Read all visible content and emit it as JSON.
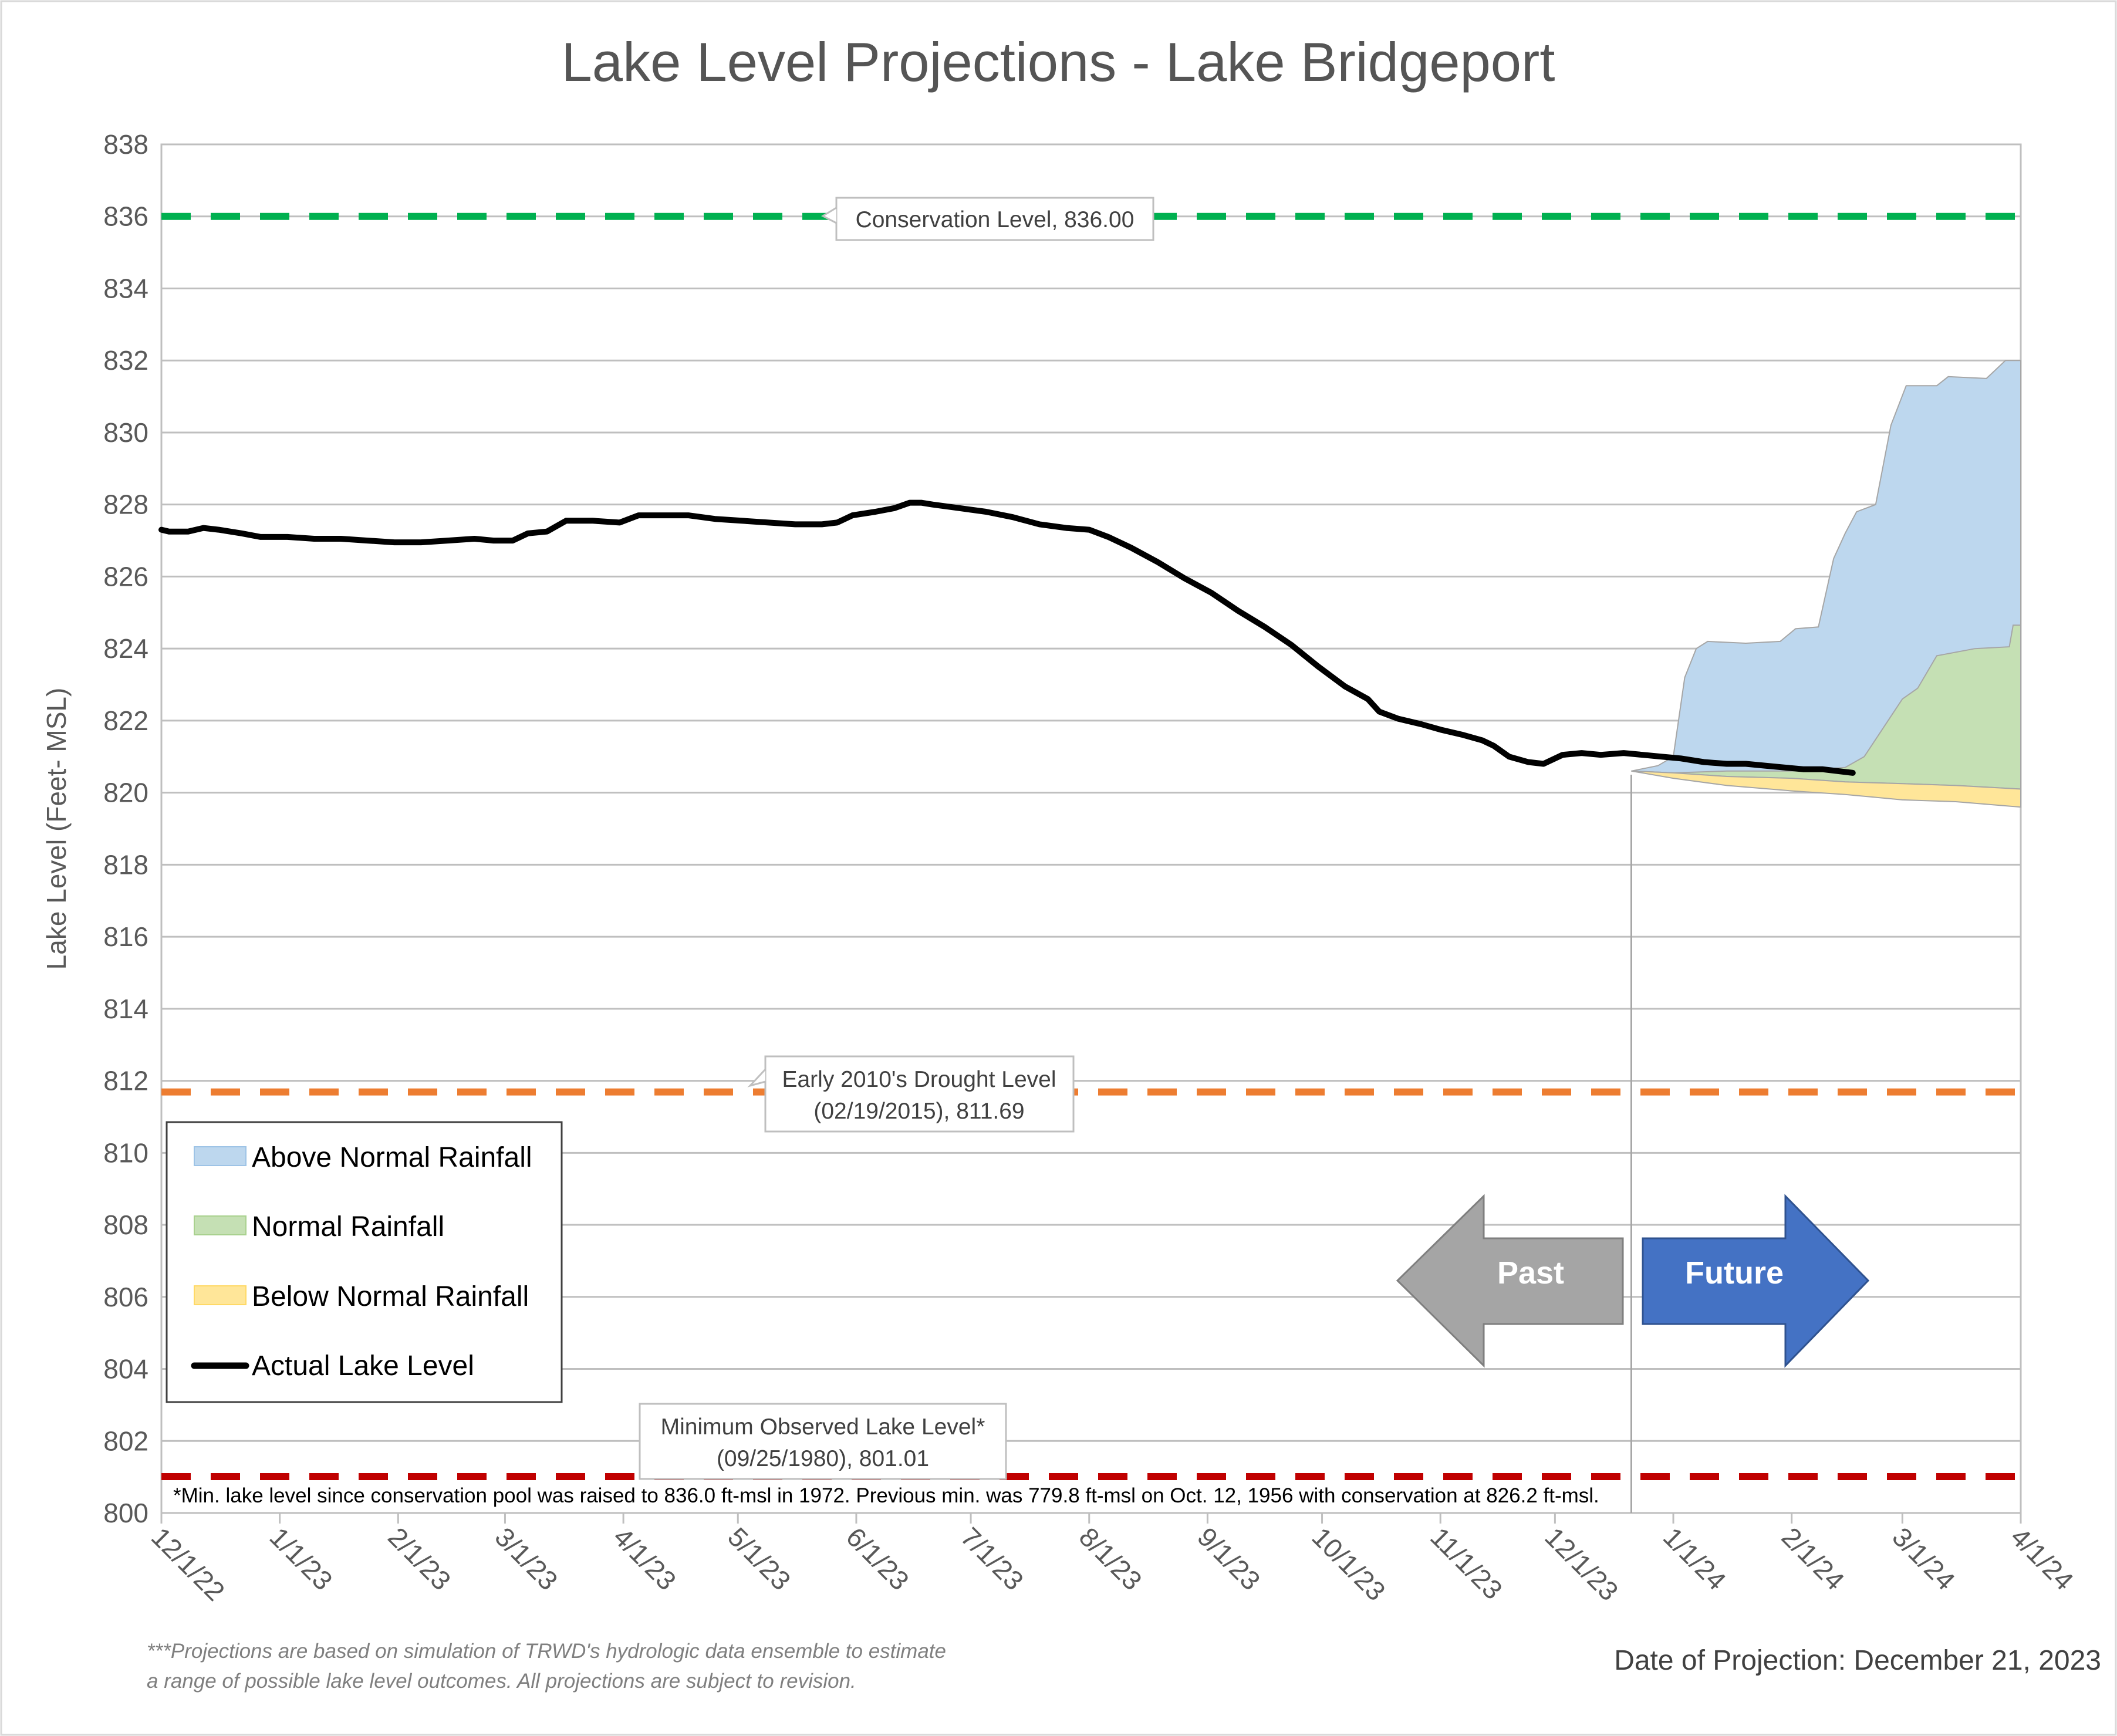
{
  "title": "Lake Level Projections - Lake Bridgeport",
  "ylabel": "Lake Level (Feet- MSL)",
  "colors": {
    "actual": "#000000",
    "above": "#bdd7ee",
    "normal": "#c5e0b4",
    "below": "#ffe699",
    "conservation": "#00b050",
    "drought": "#ed7d31",
    "minimum": "#c00000",
    "past_arrow": "#a5a5a5",
    "future_arrow": "#4472c4",
    "grid": "#bfbfbf"
  },
  "callouts": {
    "conservation": "Conservation Level, 836.00",
    "drought_line1": "Early 2010's Drought Level",
    "drought_line2": "(02/19/2015), 811.69",
    "minimum_line1": "Minimum Observed Lake Level*",
    "minimum_line2": "(09/25/1980), 801.01"
  },
  "legend": {
    "above": "Above Normal Rainfall",
    "normal": "Normal Rainfall",
    "below": "Below Normal Rainfall",
    "actual": "Actual Lake Level"
  },
  "arrows": {
    "past": "Past",
    "future": "Future"
  },
  "footnote": "*Min. lake level since conservation pool was raised to 836.0 ft-msl in 1972.  Previous min. was 779.8 ft-msl on Oct. 12, 1956 with conservation at 826.2 ft-msl.",
  "disclaimer_line1": "***Projections are based on simulation of TRWD's hydrologic data ensemble to estimate",
  "disclaimer_line2": "a range of possible lake level outcomes.  All projections are subject to revision.",
  "projection_date": "Date of Projection: December 21, 2023",
  "chart_data": {
    "type": "area",
    "x_axis": {
      "range": [
        "2022-12-01",
        "2024-04-01"
      ],
      "tick_labels": [
        "12/1/22",
        "1/1/23",
        "2/1/23",
        "3/1/23",
        "4/1/23",
        "5/1/23",
        "6/1/23",
        "7/1/23",
        "8/1/23",
        "9/1/23",
        "10/1/23",
        "11/1/23",
        "12/1/23",
        "1/1/24",
        "2/1/24",
        "3/1/24",
        "4/1/24"
      ],
      "tick_dates": [
        "2022-12-01",
        "2023-01-01",
        "2023-02-01",
        "2023-03-01",
        "2023-04-01",
        "2023-05-01",
        "2023-06-01",
        "2023-07-01",
        "2023-08-01",
        "2023-09-01",
        "2023-10-01",
        "2023-11-01",
        "2023-12-01",
        "2024-01-01",
        "2024-02-01",
        "2024-03-01",
        "2024-04-01"
      ]
    },
    "y_axis": {
      "range": [
        800,
        838
      ],
      "ticks": [
        800,
        802,
        804,
        806,
        808,
        810,
        812,
        814,
        816,
        818,
        820,
        822,
        824,
        826,
        828,
        830,
        832,
        834,
        836,
        838
      ]
    },
    "grid": "horizontal",
    "legend_placement": "lower-left",
    "projection_start": "2023-12-21",
    "reference_lines": [
      {
        "name": "Conservation Level",
        "value": 836.0
      },
      {
        "name": "Early 2010's Drought Level",
        "value": 811.69
      },
      {
        "name": "Minimum Observed Lake Level",
        "value": 801.01
      }
    ],
    "series": [
      {
        "name": "Actual Lake Level",
        "points": [
          [
            "2022-12-01",
            827.3
          ],
          [
            "2022-12-03",
            827.25
          ],
          [
            "2022-12-08",
            827.25
          ],
          [
            "2022-12-12",
            827.35
          ],
          [
            "2022-12-16",
            827.3
          ],
          [
            "2022-12-22",
            827.2
          ],
          [
            "2022-12-27",
            827.1
          ],
          [
            "2023-01-03",
            827.1
          ],
          [
            "2023-01-10",
            827.05
          ],
          [
            "2023-01-17",
            827.05
          ],
          [
            "2023-01-24",
            827.0
          ],
          [
            "2023-01-31",
            826.95
          ],
          [
            "2023-02-07",
            826.95
          ],
          [
            "2023-02-14",
            827.0
          ],
          [
            "2023-02-21",
            827.05
          ],
          [
            "2023-02-26",
            827.0
          ],
          [
            "2023-03-03",
            827.0
          ],
          [
            "2023-03-07",
            827.2
          ],
          [
            "2023-03-12",
            827.25
          ],
          [
            "2023-03-17",
            827.55
          ],
          [
            "2023-03-24",
            827.55
          ],
          [
            "2023-03-31",
            827.5
          ],
          [
            "2023-04-05",
            827.7
          ],
          [
            "2023-04-12",
            827.7
          ],
          [
            "2023-04-18",
            827.7
          ],
          [
            "2023-04-25",
            827.6
          ],
          [
            "2023-05-02",
            827.55
          ],
          [
            "2023-05-09",
            827.5
          ],
          [
            "2023-05-16",
            827.45
          ],
          [
            "2023-05-23",
            827.45
          ],
          [
            "2023-05-27",
            827.5
          ],
          [
            "2023-05-31",
            827.7
          ],
          [
            "2023-06-06",
            827.8
          ],
          [
            "2023-06-11",
            827.9
          ],
          [
            "2023-06-15",
            828.05
          ],
          [
            "2023-06-18",
            828.05
          ],
          [
            "2023-06-21",
            828.0
          ],
          [
            "2023-06-28",
            827.9
          ],
          [
            "2023-07-05",
            827.8
          ],
          [
            "2023-07-12",
            827.65
          ],
          [
            "2023-07-19",
            827.45
          ],
          [
            "2023-07-26",
            827.35
          ],
          [
            "2023-08-01",
            827.3
          ],
          [
            "2023-08-06",
            827.1
          ],
          [
            "2023-08-12",
            826.8
          ],
          [
            "2023-08-19",
            826.4
          ],
          [
            "2023-08-26",
            825.95
          ],
          [
            "2023-09-02",
            825.55
          ],
          [
            "2023-09-09",
            825.05
          ],
          [
            "2023-09-16",
            824.6
          ],
          [
            "2023-09-23",
            824.1
          ],
          [
            "2023-09-30",
            823.5
          ],
          [
            "2023-10-07",
            822.95
          ],
          [
            "2023-10-13",
            822.6
          ],
          [
            "2023-10-16",
            822.25
          ],
          [
            "2023-10-21",
            822.05
          ],
          [
            "2023-10-27",
            821.9
          ],
          [
            "2023-11-01",
            821.75
          ],
          [
            "2023-11-07",
            821.6
          ],
          [
            "2023-11-12",
            821.45
          ],
          [
            "2023-11-15",
            821.3
          ],
          [
            "2023-11-19",
            821.0
          ],
          [
            "2023-11-24",
            820.85
          ],
          [
            "2023-11-28",
            820.8
          ],
          [
            "2023-12-03",
            821.05
          ],
          [
            "2023-12-08",
            821.1
          ],
          [
            "2023-12-13",
            821.05
          ],
          [
            "2023-12-19",
            821.1
          ],
          [
            "2023-12-24",
            821.05
          ],
          [
            "2023-12-29",
            821.0
          ],
          [
            "2024-01-03",
            820.95
          ],
          [
            "2024-01-09",
            820.85
          ],
          [
            "2024-01-15",
            820.8
          ],
          [
            "2024-01-20",
            820.8
          ],
          [
            "2024-01-25",
            820.75
          ],
          [
            "2024-01-30",
            820.7
          ],
          [
            "2024-02-04",
            820.65
          ],
          [
            "2024-02-09",
            820.65
          ],
          [
            "2024-02-13",
            820.6
          ],
          [
            "2024-02-17",
            820.55
          ]
        ]
      },
      {
        "name": "Above Normal Rainfall",
        "points": [
          [
            "2023-12-21",
            820.6
          ],
          [
            "2023-12-28",
            820.75
          ],
          [
            "2024-01-01",
            821.0
          ],
          [
            "2024-01-04",
            823.2
          ],
          [
            "2024-01-07",
            824.0
          ],
          [
            "2024-01-10",
            824.2
          ],
          [
            "2024-01-20",
            824.15
          ],
          [
            "2024-01-29",
            824.2
          ],
          [
            "2024-02-02",
            824.55
          ],
          [
            "2024-02-08",
            824.6
          ],
          [
            "2024-02-12",
            826.5
          ],
          [
            "2024-02-15",
            827.2
          ],
          [
            "2024-02-18",
            827.8
          ],
          [
            "2024-02-23",
            828.0
          ],
          [
            "2024-02-27",
            830.2
          ],
          [
            "2024-03-02",
            831.3
          ],
          [
            "2024-03-10",
            831.3
          ],
          [
            "2024-03-13",
            831.55
          ],
          [
            "2024-03-23",
            831.5
          ],
          [
            "2024-03-28",
            832.0
          ],
          [
            "2024-04-01",
            832.0
          ]
        ]
      },
      {
        "name": "Normal Rainfall",
        "points": [
          [
            "2023-12-21",
            820.6
          ],
          [
            "2024-01-01",
            820.55
          ],
          [
            "2024-01-15",
            820.6
          ],
          [
            "2024-02-01",
            820.6
          ],
          [
            "2024-02-08",
            820.65
          ],
          [
            "2024-02-15",
            820.7
          ],
          [
            "2024-02-20",
            821.0
          ],
          [
            "2024-02-25",
            821.8
          ],
          [
            "2024-03-01",
            822.6
          ],
          [
            "2024-03-05",
            822.9
          ],
          [
            "2024-03-10",
            823.8
          ],
          [
            "2024-03-20",
            824.0
          ],
          [
            "2024-03-29",
            824.05
          ],
          [
            "2024-03-30",
            824.65
          ],
          [
            "2024-04-01",
            824.65
          ]
        ]
      },
      {
        "name": "Below Normal Rainfall",
        "points": [
          [
            "2023-12-21",
            820.6
          ],
          [
            "2024-01-01",
            820.4
          ],
          [
            "2024-01-15",
            820.2
          ],
          [
            "2024-02-01",
            820.05
          ],
          [
            "2024-02-15",
            819.95
          ],
          [
            "2024-03-01",
            819.8
          ],
          [
            "2024-03-15",
            819.75
          ],
          [
            "2024-04-01",
            819.6
          ]
        ]
      }
    ],
    "band_baseline": [
      [
        "2023-12-21",
        820.6
      ],
      [
        "2024-01-01",
        820.55
      ],
      [
        "2024-01-15",
        820.45
      ],
      [
        "2024-02-01",
        820.4
      ],
      [
        "2024-02-15",
        820.3
      ],
      [
        "2024-03-01",
        820.25
      ],
      [
        "2024-03-15",
        820.2
      ],
      [
        "2024-04-01",
        820.1
      ]
    ]
  }
}
